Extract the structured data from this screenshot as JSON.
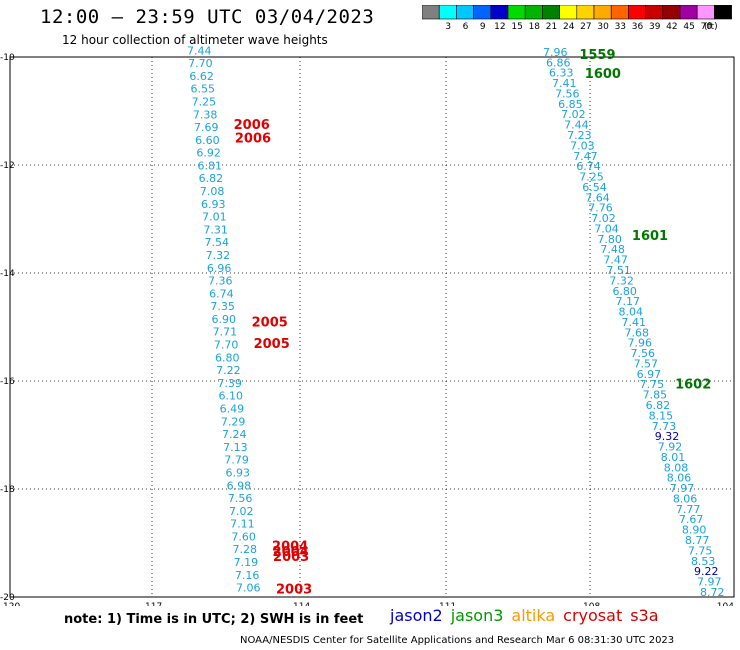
{
  "header": {
    "title": "12:00 – 23:59 UTC 03/04/2023",
    "subtitle": "12 hour collection of altimeter wave heights"
  },
  "colorbar": {
    "unit": "(ft)",
    "bins": [
      {
        "color": "#808080",
        "label": ""
      },
      {
        "color": "#00ffff",
        "label": "3"
      },
      {
        "color": "#00c8ff",
        "label": "6"
      },
      {
        "color": "#0064ff",
        "label": "9"
      },
      {
        "color": "#0000c8",
        "label": "12"
      },
      {
        "color": "#00dc00",
        "label": "15"
      },
      {
        "color": "#00b400",
        "label": "18"
      },
      {
        "color": "#008200",
        "label": "21"
      },
      {
        "color": "#ffff00",
        "label": "24"
      },
      {
        "color": "#ffd200",
        "label": "27"
      },
      {
        "color": "#ffaa00",
        "label": "30"
      },
      {
        "color": "#ff6400",
        "label": "33"
      },
      {
        "color": "#ff0000",
        "label": "36"
      },
      {
        "color": "#c80000",
        "label": "39"
      },
      {
        "color": "#960000",
        "label": "42"
      },
      {
        "color": "#a000a0",
        "label": "45"
      },
      {
        "color": "#ff96ff",
        "label": "70"
      },
      {
        "color": "#000000",
        "label": ""
      }
    ]
  },
  "map": {
    "lon_range": [
      -120,
      -104
    ],
    "lat_range": [
      -20,
      -10
    ],
    "lon_ticks": [
      "-120",
      "-117",
      "-114",
      "-111",
      "-108",
      "-104"
    ],
    "lat_ticks": [
      "-10",
      "-12",
      "-14",
      "-16",
      "-18",
      "-20"
    ],
    "track1_values": [
      "7.44",
      "7.70",
      "6.62",
      "6.55",
      "7.25",
      "7.38",
      "7.69",
      "6.60",
      "6.92",
      "6.81",
      "6.82",
      "7.08",
      "6.93",
      "7.01",
      "7.31",
      "7.54",
      "7.32",
      "6.96",
      "7.36",
      "6.74",
      "7.35",
      "6.90",
      "7.71",
      "7.70",
      "6.80",
      "7.22",
      "7.39",
      "6.10",
      "6.49",
      "7.29",
      "7.24",
      "7.13",
      "7.79",
      "6.93",
      "6.98",
      "7.56",
      "7.02",
      "7.11",
      "7.60",
      "7.28",
      "7.19",
      "7.16",
      "7.06"
    ],
    "track1_times": [
      {
        "label": "2006",
        "lat": -11.3
      },
      {
        "label": "2006",
        "lat": -11.55
      },
      {
        "label": "2005",
        "lat": -14.95
      },
      {
        "label": "2005",
        "lat": -15.35
      },
      {
        "label": "2004",
        "lat": -19.1
      },
      {
        "label": "2004",
        "lat": -19.2
      },
      {
        "label": "2003",
        "lat": -19.3
      },
      {
        "label": "2003",
        "lat": -19.9
      }
    ],
    "track2_values": [
      "7.96",
      "6.86",
      "6.33",
      "7.41",
      "7.56",
      "6.85",
      "7.02",
      "7.44",
      "7.23",
      "7.03",
      "7.47",
      "6.74",
      "7.25",
      "6.54",
      "7.64",
      "7.76",
      "7.02",
      "7.04",
      "7.80",
      "7.48",
      "7.47",
      "7.51",
      "7.32",
      "6.80",
      "7.17",
      "8.04",
      "7.41",
      "7.68",
      "7.96",
      "7.56",
      "7.57",
      "6.97",
      "7.75",
      "7.85",
      "6.82",
      "8.15",
      "7.73",
      "9.32",
      "7.92",
      "8.01",
      "8.08",
      "8.06",
      "7.97",
      "8.06",
      "7.77",
      "7.67",
      "8.90",
      "8.77",
      "7.75",
      "8.53",
      "9.22",
      "7.97",
      "8.72"
    ],
    "track2_times": [
      {
        "label": "1559",
        "lat": -10.0
      },
      {
        "label": "1600",
        "lat": -10.35
      },
      {
        "label": "1601",
        "lat": -13.35
      },
      {
        "label": "1602",
        "lat": -16.1
      }
    ]
  },
  "footer": {
    "note": "note: 1) Time is in UTC; 2) SWH is in feet",
    "satellites": [
      {
        "name": "jason2",
        "color": "#0000cc"
      },
      {
        "name": "jason3",
        "color": "#009900"
      },
      {
        "name": "altika",
        "color": "#ff9900"
      },
      {
        "name": "cryosat",
        "color": "#dd0000"
      },
      {
        "name": "s3a",
        "color": "#cc0000"
      }
    ],
    "credit": "NOAA/NESDIS Center for Satellite Applications and Research   Mar  6 08:31:30 UTC 2023"
  }
}
